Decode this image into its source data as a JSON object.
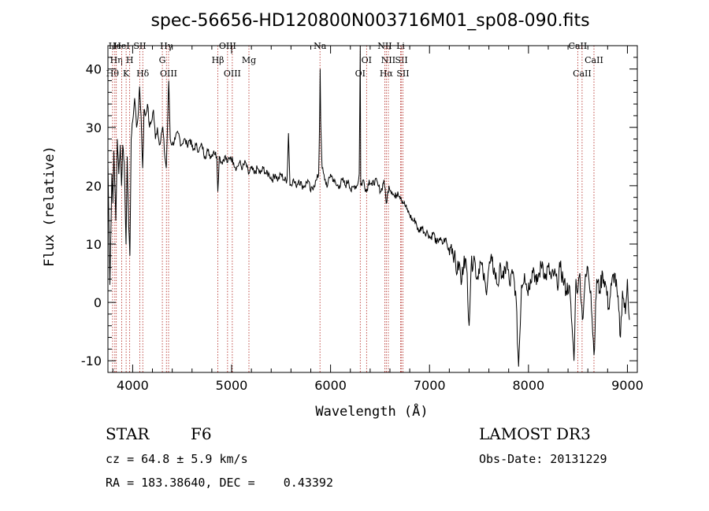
{
  "chart_data": {
    "type": "line",
    "title": "spec-56656-HD120800N003716M01_sp08-090.fits",
    "xlabel": "Wavelength (Å)",
    "ylabel": "Flux (relative)",
    "xlim": [
      3750,
      9100
    ],
    "ylim": [
      -12,
      44
    ],
    "xticks": [
      4000,
      5000,
      6000,
      7000,
      8000,
      9000
    ],
    "yticks": [
      -10,
      0,
      10,
      20,
      30,
      40
    ],
    "series": [
      {
        "points": [
          [
            3750,
            24
          ],
          [
            3770,
            3
          ],
          [
            3790,
            22
          ],
          [
            3800,
            17
          ],
          [
            3810,
            26
          ],
          [
            3830,
            14
          ],
          [
            3845,
            28
          ],
          [
            3860,
            22
          ],
          [
            3875,
            27
          ],
          [
            3888,
            20
          ],
          [
            3900,
            27
          ],
          [
            3915,
            24
          ],
          [
            3933,
            10
          ],
          [
            3945,
            25
          ],
          [
            3960,
            13
          ],
          [
            3972,
            8
          ],
          [
            3985,
            28
          ],
          [
            4000,
            31
          ],
          [
            4020,
            35
          ],
          [
            4040,
            30
          ],
          [
            4060,
            33
          ],
          [
            4070,
            37
          ],
          [
            4085,
            32
          ],
          [
            4101,
            23
          ],
          [
            4115,
            33
          ],
          [
            4130,
            32
          ],
          [
            4150,
            34
          ],
          [
            4170,
            30
          ],
          [
            4190,
            31
          ],
          [
            4210,
            33
          ],
          [
            4230,
            28
          ],
          [
            4250,
            30
          ],
          [
            4270,
            27
          ],
          [
            4290,
            29
          ],
          [
            4305,
            30
          ],
          [
            4320,
            26
          ],
          [
            4340,
            23
          ],
          [
            4350,
            29
          ],
          [
            4365,
            38
          ],
          [
            4380,
            28
          ],
          [
            4400,
            27
          ],
          [
            4430,
            28
          ],
          [
            4460,
            29
          ],
          [
            4490,
            27
          ],
          [
            4520,
            28
          ],
          [
            4550,
            27
          ],
          [
            4580,
            28
          ],
          [
            4610,
            26
          ],
          [
            4640,
            27
          ],
          [
            4670,
            26
          ],
          [
            4700,
            27
          ],
          [
            4730,
            25
          ],
          [
            4760,
            26
          ],
          [
            4790,
            25
          ],
          [
            4820,
            26
          ],
          [
            4850,
            25
          ],
          [
            4861,
            19
          ],
          [
            4875,
            25
          ],
          [
            4900,
            24
          ],
          [
            4930,
            25
          ],
          [
            4960,
            24
          ],
          [
            4990,
            25
          ],
          [
            5020,
            24
          ],
          [
            5050,
            23
          ],
          [
            5080,
            24
          ],
          [
            5110,
            23
          ],
          [
            5140,
            24
          ],
          [
            5170,
            22
          ],
          [
            5200,
            23
          ],
          [
            5230,
            22
          ],
          [
            5260,
            23
          ],
          [
            5290,
            22
          ],
          [
            5320,
            23
          ],
          [
            5350,
            22
          ],
          [
            5380,
            22
          ],
          [
            5410,
            21
          ],
          [
            5440,
            22
          ],
          [
            5470,
            21
          ],
          [
            5500,
            22
          ],
          [
            5530,
            21
          ],
          [
            5560,
            21
          ],
          [
            5575,
            29
          ],
          [
            5590,
            20
          ],
          [
            5620,
            21
          ],
          [
            5650,
            20
          ],
          [
            5680,
            21
          ],
          [
            5710,
            20
          ],
          [
            5740,
            20
          ],
          [
            5770,
            21
          ],
          [
            5800,
            19
          ],
          [
            5830,
            20
          ],
          [
            5860,
            21
          ],
          [
            5880,
            22
          ],
          [
            5890,
            32
          ],
          [
            5895,
            40
          ],
          [
            5900,
            31
          ],
          [
            5915,
            23
          ],
          [
            5940,
            21
          ],
          [
            5970,
            20
          ],
          [
            6000,
            22
          ],
          [
            6030,
            21
          ],
          [
            6060,
            20
          ],
          [
            6090,
            20
          ],
          [
            6120,
            21
          ],
          [
            6150,
            20
          ],
          [
            6180,
            21
          ],
          [
            6210,
            19
          ],
          [
            6240,
            20
          ],
          [
            6270,
            20
          ],
          [
            6290,
            22
          ],
          [
            6300,
            44
          ],
          [
            6305,
            20
          ],
          [
            6330,
            21
          ],
          [
            6363,
            19
          ],
          [
            6390,
            21
          ],
          [
            6420,
            20
          ],
          [
            6450,
            21
          ],
          [
            6480,
            20
          ],
          [
            6510,
            19
          ],
          [
            6540,
            21
          ],
          [
            6563,
            17
          ],
          [
            6590,
            20
          ],
          [
            6620,
            19
          ],
          [
            6650,
            18
          ],
          [
            6680,
            19
          ],
          [
            6710,
            18
          ],
          [
            6740,
            17
          ],
          [
            6770,
            16
          ],
          [
            6800,
            15
          ],
          [
            6830,
            14
          ],
          [
            6860,
            14
          ],
          [
            6890,
            12
          ],
          [
            6920,
            13
          ],
          [
            6950,
            12
          ],
          [
            6980,
            12
          ],
          [
            7010,
            11
          ],
          [
            7040,
            12
          ],
          [
            7070,
            10
          ],
          [
            7100,
            11
          ],
          [
            7130,
            10
          ],
          [
            7160,
            11
          ],
          [
            7190,
            9
          ],
          [
            7220,
            10
          ],
          [
            7250,
            8
          ],
          [
            7280,
            5
          ],
          [
            7300,
            7
          ],
          [
            7320,
            3
          ],
          [
            7350,
            8
          ],
          [
            7380,
            5
          ],
          [
            7400,
            -4
          ],
          [
            7420,
            6
          ],
          [
            7450,
            8
          ],
          [
            7480,
            4
          ],
          [
            7510,
            7
          ],
          [
            7540,
            5
          ],
          [
            7570,
            2
          ],
          [
            7600,
            6
          ],
          [
            7630,
            7
          ],
          [
            7660,
            5
          ],
          [
            7690,
            3
          ],
          [
            7720,
            6
          ],
          [
            7750,
            4
          ],
          [
            7780,
            7
          ],
          [
            7810,
            3
          ],
          [
            7840,
            5
          ],
          [
            7870,
            2
          ],
          [
            7900,
            -11
          ],
          [
            7930,
            3
          ],
          [
            7960,
            5
          ],
          [
            7990,
            2
          ],
          [
            8020,
            4
          ],
          [
            8050,
            6
          ],
          [
            8080,
            3
          ],
          [
            8110,
            5
          ],
          [
            8140,
            7
          ],
          [
            8170,
            4
          ],
          [
            8200,
            6
          ],
          [
            8230,
            4
          ],
          [
            8260,
            5
          ],
          [
            8290,
            3
          ],
          [
            8320,
            6
          ],
          [
            8350,
            4
          ],
          [
            8380,
            2
          ],
          [
            8410,
            3
          ],
          [
            8440,
            -4
          ],
          [
            8460,
            -10
          ],
          [
            8480,
            4
          ],
          [
            8500,
            2
          ],
          [
            8520,
            5
          ],
          [
            8545,
            -3
          ],
          [
            8570,
            3
          ],
          [
            8600,
            6
          ],
          [
            8630,
            2
          ],
          [
            8662,
            -9
          ],
          [
            8690,
            4
          ],
          [
            8720,
            2
          ],
          [
            8750,
            5
          ],
          [
            8780,
            3
          ],
          [
            8810,
            -1
          ],
          [
            8840,
            3
          ],
          [
            8870,
            5
          ],
          [
            8900,
            1
          ],
          [
            8930,
            -6
          ],
          [
            8950,
            2
          ],
          [
            8980,
            -2
          ],
          [
            9000,
            4
          ],
          [
            9020,
            -3
          ]
        ]
      }
    ],
    "line_markers": [
      {
        "w": 3797,
        "label": "Hθ",
        "row": 2
      },
      {
        "w": 3820,
        "label": "He",
        "row": 0
      },
      {
        "w": 3835,
        "label": "Hη",
        "row": 1
      },
      {
        "w": 3889,
        "label": "HeI",
        "row": 0
      },
      {
        "w": 3934,
        "label": "K",
        "row": 2
      },
      {
        "w": 3970,
        "label": "H",
        "row": 1
      },
      {
        "w": 4072,
        "label": "SII",
        "row": 0
      },
      {
        "w": 4102,
        "label": "Hδ",
        "row": 2
      },
      {
        "w": 4300,
        "label": "G",
        "row": 1
      },
      {
        "w": 4341,
        "label": "Hγ",
        "row": 0
      },
      {
        "w": 4363,
        "label": "OIII",
        "row": 2
      },
      {
        "w": 4861,
        "label": "Hβ",
        "row": 1
      },
      {
        "w": 4959,
        "label": "OIII",
        "row": 0
      },
      {
        "w": 5007,
        "label": "OIII",
        "row": 2
      },
      {
        "w": 5175,
        "label": "Mg",
        "row": 1
      },
      {
        "w": 5893,
        "label": "Na",
        "row": 0
      },
      {
        "w": 6300,
        "label": "OI",
        "row": 2
      },
      {
        "w": 6364,
        "label": "OI",
        "row": 1
      },
      {
        "w": 6548,
        "label": "NII",
        "row": 0
      },
      {
        "w": 6563,
        "label": "Hα",
        "row": 2
      },
      {
        "w": 6584,
        "label": "NII",
        "row": 1
      },
      {
        "w": 6708,
        "label": "Li",
        "row": 0
      },
      {
        "w": 6717,
        "label": "SII",
        "row": 1
      },
      {
        "w": 6731,
        "label": "SII",
        "row": 2
      },
      {
        "w": 8498,
        "label": "CaII",
        "row": 0
      },
      {
        "w": 8542,
        "label": "CaII",
        "row": 2
      },
      {
        "w": 8662,
        "label": "CaII",
        "row": 1
      }
    ],
    "colors": {
      "spectrum": "#000000",
      "markers": "#b0221b"
    },
    "grid": false,
    "legend": "none"
  },
  "info": {
    "object_class": "STAR",
    "subclass": "F6",
    "cz": "cz = 64.8 ± 5.9 km/s",
    "coords": "RA = 183.38640, DEC =    0.43392",
    "survey": "LAMOST DR3",
    "obs_date": "Obs-Date: 20131229"
  }
}
